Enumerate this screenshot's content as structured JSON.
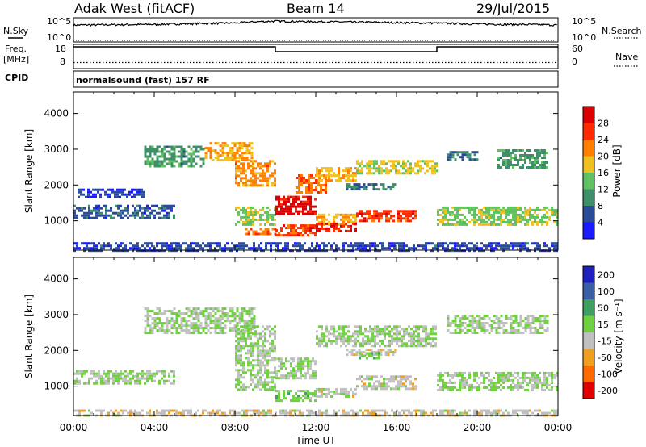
{
  "header": {
    "station": "Adak West (fitACF)",
    "beam": "Beam 14",
    "date": "29/Jul/2015"
  },
  "nsky_panel": {
    "left_label": "N.Sky",
    "right_label": "N.Search",
    "left_ticks": [
      "10^5",
      "10^0"
    ],
    "right_ticks": [
      "10^5",
      "10^0"
    ]
  },
  "freq_panel": {
    "left_label_1": "Freq.",
    "left_label_2": "[MHz]",
    "right_label": "Nave",
    "left_ticks": [
      "18",
      "8"
    ],
    "right_ticks": [
      "60",
      "0"
    ]
  },
  "cpid_panel": {
    "label": "CPID",
    "value": "normalsound (fast) 157 RF"
  },
  "power_panel": {
    "y_label": "Slant Range [km]",
    "y_ticks": [
      "4000",
      "3000",
      "2000",
      "1000"
    ],
    "colorbar_label": "Power [dB]",
    "colorbar_ticks": [
      "28",
      "24",
      "20",
      "16",
      "12",
      "8",
      "4"
    ],
    "colors": [
      "#1a1aff",
      "#2a4a9a",
      "#3f8f6a",
      "#5fc15f",
      "#f0c020",
      "#ff8000",
      "#ff2a00",
      "#dd0000"
    ]
  },
  "velocity_panel": {
    "y_label": "Slant Range [km]",
    "y_ticks": [
      "4000",
      "3000",
      "2000",
      "1000"
    ],
    "colorbar_label": "Velocity [m s⁻¹]",
    "colorbar_ticks": [
      "200",
      "100",
      "50",
      "15",
      "-15",
      "-50",
      "-100",
      "-200"
    ],
    "colors": [
      "#2020c0",
      "#3a5fa5",
      "#3f9f5f",
      "#6fd040",
      "#c0c0c0",
      "#f0a020",
      "#ff6a00",
      "#e00000"
    ]
  },
  "x_axis": {
    "title": "Time UT",
    "ticks": [
      "00:00",
      "04:00",
      "08:00",
      "12:00",
      "16:00",
      "20:00",
      "00:00"
    ]
  },
  "chart_data": [
    {
      "type": "line",
      "title": "N.Sky / N.Search",
      "x_unit": "UT hours",
      "y_scale": "log",
      "ylim": [
        1,
        100000
      ],
      "series": [
        {
          "name": "N.Sky",
          "x": [
            0,
            4,
            8,
            10,
            12,
            16,
            20,
            24
          ],
          "y": [
            3000,
            4000,
            8000,
            20000,
            15000,
            10000,
            5000,
            3000
          ]
        },
        {
          "name": "N.Search",
          "x": [
            0,
            24
          ],
          "y": [
            1,
            1
          ]
        }
      ]
    },
    {
      "type": "line",
      "title": "Freq. / Nave",
      "x_unit": "UT hours",
      "ylim": [
        8,
        18
      ],
      "series": [
        {
          "name": "Freq. [MHz]",
          "x": [
            0,
            10,
            10,
            18,
            18,
            24
          ],
          "y": [
            17,
            17,
            15,
            15,
            17,
            17
          ]
        },
        {
          "name": "Nave",
          "x": [
            0,
            24
          ],
          "y": [
            15,
            15
          ]
        }
      ]
    },
    {
      "type": "heatmap",
      "title": "Power [dB]",
      "x_unit": "UT hours",
      "xlim": [
        0,
        24
      ],
      "ylim": [
        180,
        4600
      ],
      "y_unit": "km",
      "z_range": [
        0,
        30
      ],
      "regions": [
        {
          "x": [
            0,
            5
          ],
          "y": [
            1100,
            1450
          ],
          "value": 6
        },
        {
          "x": [
            0.2,
            3.5
          ],
          "y": [
            1650,
            1900
          ],
          "value": 4
        },
        {
          "x": [
            3.5,
            6.5
          ],
          "y": [
            2500,
            3100
          ],
          "value": 10
        },
        {
          "x": [
            6.5,
            8.8
          ],
          "y": [
            2700,
            3200
          ],
          "value": 18
        },
        {
          "x": [
            8,
            10
          ],
          "y": [
            2000,
            2700
          ],
          "value": 20
        },
        {
          "x": [
            8,
            10
          ],
          "y": [
            900,
            1400
          ],
          "value": 14
        },
        {
          "x": [
            8.5,
            10
          ],
          "y": [
            600,
            800
          ],
          "value": 22
        },
        {
          "x": [
            10,
            12
          ],
          "y": [
            1200,
            1700
          ],
          "value": 28
        },
        {
          "x": [
            10,
            12
          ],
          "y": [
            600,
            900
          ],
          "value": 24
        },
        {
          "x": [
            11,
            12.5
          ],
          "y": [
            1800,
            2300
          ],
          "value": 22
        },
        {
          "x": [
            12,
            14
          ],
          "y": [
            2100,
            2500
          ],
          "value": 18
        },
        {
          "x": [
            12,
            14
          ],
          "y": [
            900,
            1200
          ],
          "value": 18
        },
        {
          "x": [
            12,
            14
          ],
          "y": [
            700,
            950
          ],
          "value": 26
        },
        {
          "x": [
            14,
            17
          ],
          "y": [
            1000,
            1300
          ],
          "value": 24
        },
        {
          "x": [
            13.5,
            16
          ],
          "y": [
            1850,
            2050
          ],
          "value": 8
        },
        {
          "x": [
            14,
            18
          ],
          "y": [
            2300,
            2700
          ],
          "value": 16
        },
        {
          "x": [
            18,
            24
          ],
          "y": [
            900,
            1400
          ],
          "value": 14
        },
        {
          "x": [
            18.5,
            20
          ],
          "y": [
            2700,
            2950
          ],
          "value": 8
        },
        {
          "x": [
            21,
            23.5
          ],
          "y": [
            2500,
            3000
          ],
          "value": 10
        },
        {
          "x": [
            0,
            24
          ],
          "y": [
            180,
            400
          ],
          "value": 5
        }
      ]
    },
    {
      "type": "heatmap",
      "title": "Velocity [m s⁻¹]",
      "x_unit": "UT hours",
      "xlim": [
        0,
        24
      ],
      "ylim": [
        180,
        4600
      ],
      "y_unit": "km",
      "z_range": [
        -250,
        250
      ],
      "regions": [
        {
          "x": [
            0,
            5
          ],
          "y": [
            1100,
            1450
          ],
          "value": 0
        },
        {
          "x": [
            3.5,
            9
          ],
          "y": [
            2500,
            3200
          ],
          "value": 0
        },
        {
          "x": [
            8,
            10
          ],
          "y": [
            900,
            2700
          ],
          "value": 0
        },
        {
          "x": [
            10,
            12
          ],
          "y": [
            1200,
            1800
          ],
          "value": 0
        },
        {
          "x": [
            10,
            12
          ],
          "y": [
            600,
            900
          ],
          "value": 30
        },
        {
          "x": [
            12,
            14
          ],
          "y": [
            700,
            950
          ],
          "value": -30
        },
        {
          "x": [
            14,
            17
          ],
          "y": [
            900,
            1300
          ],
          "value": -30
        },
        {
          "x": [
            13.5,
            16
          ],
          "y": [
            1850,
            2050
          ],
          "value": -40
        },
        {
          "x": [
            14,
            15.2
          ],
          "y": [
            1800,
            1950
          ],
          "value": 40
        },
        {
          "x": [
            12,
            18
          ],
          "y": [
            2100,
            2700
          ],
          "value": 0
        },
        {
          "x": [
            18,
            24
          ],
          "y": [
            900,
            1400
          ],
          "value": 0
        },
        {
          "x": [
            18.5,
            23.5
          ],
          "y": [
            2500,
            3000
          ],
          "value": 0
        },
        {
          "x": [
            0,
            24
          ],
          "y": [
            180,
            350
          ],
          "value": -40
        }
      ]
    }
  ]
}
